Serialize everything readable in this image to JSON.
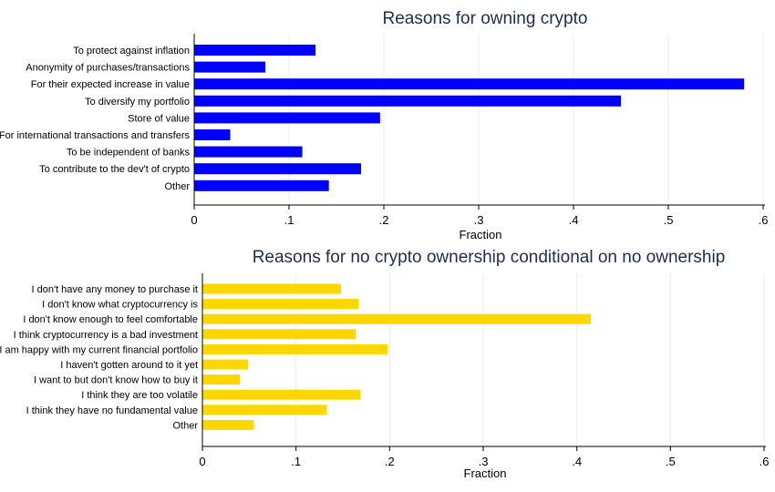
{
  "chart_data": [
    {
      "type": "bar",
      "orientation": "horizontal",
      "title": "Reasons for owning crypto",
      "xlabel": "Fraction",
      "xlim": [
        0,
        0.6
      ],
      "ticks": [
        "0",
        ".1",
        ".2",
        ".3",
        ".4",
        ".5",
        ".6"
      ],
      "color": "#0000ff",
      "categories": [
        "To protect against inflation",
        "Anonymity of purchases/transactions",
        "For their expected increase in value",
        "To diversify my portfolio",
        "Store of value",
        "For international transactions and transfers",
        "To be independent of banks",
        "To contribute to the dev't of crypto",
        "Other"
      ],
      "values": [
        0.128,
        0.075,
        0.58,
        0.45,
        0.196,
        0.038,
        0.114,
        0.176,
        0.142
      ]
    },
    {
      "type": "bar",
      "orientation": "horizontal",
      "title": "Reasons for no crypto ownership conditional on no ownership",
      "xlabel": "Fraction",
      "xlim": [
        0,
        0.6
      ],
      "ticks": [
        "0",
        ".1",
        ".2",
        ".3",
        ".4",
        ".5",
        ".6"
      ],
      "color": "#ffd700",
      "categories": [
        "I don't have any money to purchase it",
        "I don't know what cryptocurrency is",
        "I don't know enough to feel comfortable",
        "I think cryptocurrency is a bad investment",
        "I am happy with my current financial portfolio",
        "I haven't gotten around to it yet",
        "I want to but don't know how to buy it",
        "I think they are too volatile",
        "I think they have no fundamental value",
        "Other"
      ],
      "values": [
        0.148,
        0.167,
        0.415,
        0.164,
        0.198,
        0.049,
        0.04,
        0.169,
        0.133,
        0.055
      ]
    }
  ]
}
